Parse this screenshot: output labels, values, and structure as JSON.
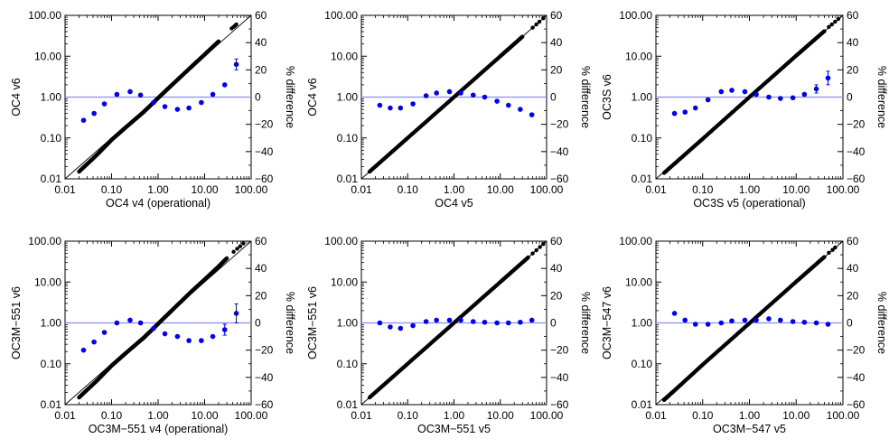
{
  "chart_data": [
    {
      "type": "scatter",
      "xlabel": "OC4 v4 (operational)",
      "ylabel": "OC4 v6",
      "y2label": "% difference",
      "xscale": "log",
      "yscale": "log",
      "xlim": [
        0.01,
        100
      ],
      "ylim": [
        0.01,
        100
      ],
      "y2lim": [
        -60,
        60
      ],
      "x_ticks": [
        "0.01",
        "0.10",
        "1.00",
        "10.00",
        "100.00"
      ],
      "y_ticks": [
        "0.01",
        "0.10",
        "1.00",
        "10.00",
        "100.00"
      ],
      "y2_ticks": [
        "-60",
        "-40",
        "-20",
        "0",
        "20",
        "40",
        "60"
      ],
      "one_to_one_line": true,
      "zero_reference_line": true,
      "scatter_curve": [
        [
          0.02,
          0.015
        ],
        [
          0.05,
          0.04
        ],
        [
          0.1,
          0.09
        ],
        [
          0.2,
          0.18
        ],
        [
          0.5,
          0.44
        ],
        [
          1,
          0.95
        ],
        [
          2,
          2.0
        ],
        [
          5,
          5.3
        ],
        [
          10,
          11
        ],
        [
          20,
          23
        ]
      ],
      "scatter_tail": [
        [
          38,
          48
        ],
        [
          42,
          52
        ],
        [
          45,
          56
        ],
        [
          48,
          60
        ]
      ],
      "diff_points": [
        [
          0.025,
          -17
        ],
        [
          0.042,
          -12
        ],
        [
          0.07,
          -5
        ],
        [
          0.13,
          2
        ],
        [
          0.25,
          4
        ],
        [
          0.42,
          1.5
        ],
        [
          0.8,
          -4
        ],
        [
          1.4,
          -7
        ],
        [
          2.6,
          -9
        ],
        [
          4.6,
          -8
        ],
        [
          8.5,
          -4
        ],
        [
          15,
          2
        ],
        [
          27,
          9
        ],
        [
          48,
          24
        ]
      ],
      "diff_errors": [
        [
          48,
          4
        ]
      ]
    },
    {
      "type": "scatter",
      "xlabel": "OC4 v5",
      "ylabel": "OC4 v6",
      "y2label": "% difference",
      "xscale": "log",
      "yscale": "log",
      "xlim": [
        0.01,
        100
      ],
      "ylim": [
        0.01,
        100
      ],
      "y2lim": [
        -60,
        60
      ],
      "x_ticks": [
        "0.01",
        "0.10",
        "1.00",
        "10.00",
        "100.00"
      ],
      "y_ticks": [
        "0.01",
        "0.10",
        "1.00",
        "10.00",
        "100.00"
      ],
      "y2_ticks": [
        "-60",
        "-40",
        "-20",
        "0",
        "20",
        "40",
        "60"
      ],
      "one_to_one_line": true,
      "zero_reference_line": true,
      "scatter_curve": [
        [
          0.015,
          0.015
        ],
        [
          0.1,
          0.1
        ],
        [
          1,
          1
        ],
        [
          10,
          10
        ],
        [
          30,
          30
        ]
      ],
      "scatter_tail": [
        [
          50,
          50
        ],
        [
          60,
          60
        ],
        [
          70,
          70
        ],
        [
          85,
          85
        ]
      ],
      "diff_points": [
        [
          0.025,
          -6
        ],
        [
          0.042,
          -8
        ],
        [
          0.07,
          -8
        ],
        [
          0.13,
          -5
        ],
        [
          0.25,
          1
        ],
        [
          0.42,
          3
        ],
        [
          0.8,
          4
        ],
        [
          1.4,
          3
        ],
        [
          2.6,
          1.5
        ],
        [
          4.6,
          0
        ],
        [
          8.5,
          -3
        ],
        [
          15,
          -6
        ],
        [
          27,
          -9
        ],
        [
          48,
          -13
        ]
      ],
      "diff_errors": []
    },
    {
      "type": "scatter",
      "xlabel": "OC3S v5 (operational)",
      "ylabel": "OC3S v6",
      "y2label": "% difference",
      "xscale": "log",
      "yscale": "log",
      "xlim": [
        0.01,
        100
      ],
      "ylim": [
        0.01,
        100
      ],
      "y2lim": [
        -60,
        60
      ],
      "x_ticks": [
        "0.01",
        "0.10",
        "1.00",
        "10.00",
        "100.00"
      ],
      "y_ticks": [
        "0.01",
        "0.10",
        "1.00",
        "10.00",
        "100.00"
      ],
      "y2_ticks": [
        "-60",
        "-40",
        "-20",
        "0",
        "20",
        "40",
        "60"
      ],
      "one_to_one_line": true,
      "zero_reference_line": true,
      "scatter_curve": [
        [
          0.015,
          0.014
        ],
        [
          0.1,
          0.095
        ],
        [
          1,
          1
        ],
        [
          10,
          10.3
        ],
        [
          40,
          41
        ]
      ],
      "scatter_tail": [
        [
          50,
          52
        ],
        [
          58,
          60
        ],
        [
          68,
          70
        ],
        [
          80,
          82
        ]
      ],
      "diff_points": [
        [
          0.025,
          -12
        ],
        [
          0.042,
          -11
        ],
        [
          0.07,
          -8
        ],
        [
          0.13,
          -2
        ],
        [
          0.25,
          4
        ],
        [
          0.42,
          5
        ],
        [
          0.8,
          4
        ],
        [
          1.4,
          2
        ],
        [
          2.6,
          0
        ],
        [
          4.6,
          -1
        ],
        [
          8.5,
          -0.5
        ],
        [
          15,
          2
        ],
        [
          27,
          6
        ],
        [
          48,
          14
        ]
      ],
      "diff_errors": [
        [
          27,
          3
        ],
        [
          48,
          5
        ]
      ]
    },
    {
      "type": "scatter",
      "xlabel": "OC3M−551 v4 (operational)",
      "ylabel": "OC3M−551 v6",
      "y2label": "% difference",
      "xscale": "log",
      "yscale": "log",
      "xlim": [
        0.01,
        100
      ],
      "ylim": [
        0.01,
        100
      ],
      "y2lim": [
        -60,
        60
      ],
      "x_ticks": [
        "0.01",
        "0.10",
        "1.00",
        "10.00",
        "100.00"
      ],
      "y_ticks": [
        "0.01",
        "0.10",
        "1.00",
        "10.00",
        "100.00"
      ],
      "y2_ticks": [
        "-60",
        "-40",
        "-20",
        "0",
        "20",
        "40",
        "60"
      ],
      "one_to_one_line": true,
      "zero_reference_line": true,
      "scatter_curve": [
        [
          0.02,
          0.015
        ],
        [
          0.05,
          0.04
        ],
        [
          0.1,
          0.09
        ],
        [
          0.2,
          0.18
        ],
        [
          0.5,
          0.44
        ],
        [
          1,
          0.95
        ],
        [
          2,
          2.05
        ],
        [
          5,
          5.6
        ],
        [
          10,
          11.5
        ],
        [
          20,
          24
        ],
        [
          30,
          38
        ]
      ],
      "scatter_tail": [
        [
          42,
          55
        ],
        [
          50,
          65
        ],
        [
          58,
          75
        ],
        [
          68,
          88
        ]
      ],
      "diff_points": [
        [
          0.025,
          -20
        ],
        [
          0.042,
          -14
        ],
        [
          0.07,
          -7
        ],
        [
          0.13,
          0
        ],
        [
          0.25,
          2
        ],
        [
          0.42,
          0
        ],
        [
          0.8,
          -4
        ],
        [
          1.4,
          -8
        ],
        [
          2.6,
          -10
        ],
        [
          4.6,
          -13
        ],
        [
          8.5,
          -13
        ],
        [
          15,
          -10
        ],
        [
          27,
          -5
        ],
        [
          48,
          7
        ]
      ],
      "diff_errors": [
        [
          27,
          4
        ],
        [
          48,
          7
        ]
      ]
    },
    {
      "type": "scatter",
      "xlabel": "OC3M−551 v5",
      "ylabel": "OC3M−551 v6",
      "y2label": "% difference",
      "xscale": "log",
      "yscale": "log",
      "xlim": [
        0.01,
        100
      ],
      "ylim": [
        0.01,
        100
      ],
      "y2lim": [
        -60,
        60
      ],
      "x_ticks": [
        "0.01",
        "0.10",
        "1.00",
        "10.00",
        "100.00"
      ],
      "y_ticks": [
        "0.01",
        "0.10",
        "1.00",
        "10.00",
        "100.00"
      ],
      "y2_ticks": [
        "-60",
        "-40",
        "-20",
        "0",
        "20",
        "40",
        "60"
      ],
      "one_to_one_line": true,
      "zero_reference_line": true,
      "scatter_curve": [
        [
          0.015,
          0.015
        ],
        [
          0.1,
          0.1
        ],
        [
          1,
          1
        ],
        [
          10,
          10
        ],
        [
          40,
          40
        ]
      ],
      "scatter_tail": [
        [
          50,
          50
        ],
        [
          60,
          60
        ],
        [
          72,
          72
        ],
        [
          85,
          85
        ]
      ],
      "diff_points": [
        [
          0.025,
          0
        ],
        [
          0.042,
          -3
        ],
        [
          0.07,
          -4
        ],
        [
          0.13,
          -2
        ],
        [
          0.25,
          1
        ],
        [
          0.42,
          2
        ],
        [
          0.8,
          2
        ],
        [
          1.4,
          2
        ],
        [
          2.6,
          1
        ],
        [
          4.6,
          0.5
        ],
        [
          8.5,
          0
        ],
        [
          15,
          0
        ],
        [
          27,
          0.5
        ],
        [
          48,
          2
        ]
      ],
      "diff_errors": []
    },
    {
      "type": "scatter",
      "xlabel": "OC3M−547 v5",
      "ylabel": "OC3M−547 v6",
      "y2label": "% difference",
      "xscale": "log",
      "yscale": "log",
      "xlim": [
        0.01,
        100
      ],
      "ylim": [
        0.01,
        100
      ],
      "y2lim": [
        -60,
        60
      ],
      "x_ticks": [
        "0.01",
        "0.10",
        "1.00",
        "10.00",
        "100.00"
      ],
      "y_ticks": [
        "0.01",
        "0.10",
        "1.00",
        "10.00",
        "100.00"
      ],
      "y2_ticks": [
        "-60",
        "-40",
        "-20",
        "0",
        "20",
        "40",
        "60"
      ],
      "one_to_one_line": true,
      "zero_reference_line": true,
      "scatter_curve": [
        [
          0.015,
          0.013
        ],
        [
          0.1,
          0.095
        ],
        [
          1,
          0.98
        ],
        [
          10,
          10.2
        ],
        [
          40,
          41
        ]
      ],
      "scatter_tail": [
        [
          50,
          52
        ],
        [
          60,
          61
        ],
        [
          68,
          70
        ]
      ],
      "diff_points": [
        [
          0.025,
          7
        ],
        [
          0.042,
          2
        ],
        [
          0.07,
          -1
        ],
        [
          0.13,
          -1
        ],
        [
          0.25,
          0
        ],
        [
          0.42,
          1.5
        ],
        [
          0.8,
          2
        ],
        [
          1.4,
          2
        ],
        [
          2.6,
          3
        ],
        [
          4.6,
          2
        ],
        [
          8.5,
          1
        ],
        [
          15,
          0.5
        ],
        [
          27,
          0
        ],
        [
          48,
          -1
        ]
      ],
      "diff_errors": [
        [
          25,
          2
        ]
      ]
    }
  ],
  "colors": {
    "scatter": "#000000",
    "diff_points": "#0000ee",
    "reference_line": "#8c8cf2",
    "one_to_one_line": "#000000"
  }
}
